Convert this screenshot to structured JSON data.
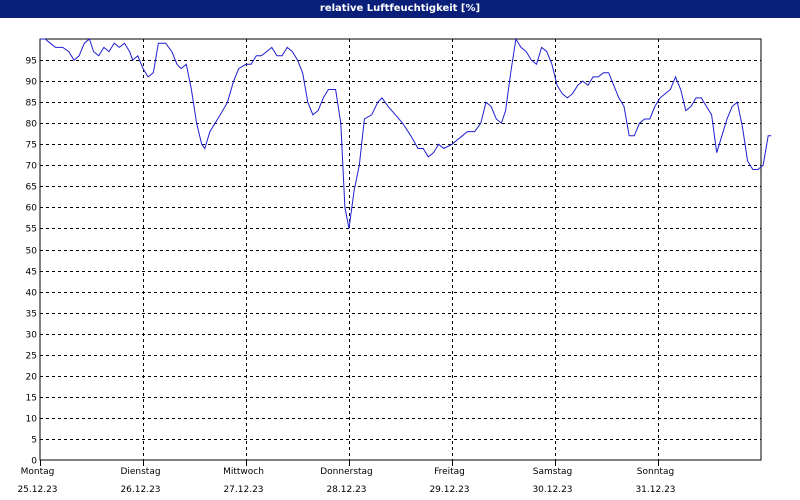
{
  "chart_data": {
    "type": "line",
    "title": "relative Luftfeuchtigkeit [%]",
    "xlabel": "",
    "ylabel": "",
    "ylim": [
      0,
      100
    ],
    "xlim": [
      0,
      7
    ],
    "grid": true,
    "colors": {
      "header_background": "#0a1f7a",
      "series_line": "#1f1fd0",
      "grid": "#000000"
    },
    "y_ticks": [
      0,
      5,
      10,
      15,
      20,
      25,
      30,
      35,
      40,
      45,
      50,
      55,
      60,
      65,
      70,
      75,
      80,
      85,
      90,
      95
    ],
    "x_ticks": [
      {
        "x": 0,
        "day": "Montag",
        "date": "25.12.23"
      },
      {
        "x": 1,
        "day": "Dienstag",
        "date": "26.12.23"
      },
      {
        "x": 2,
        "day": "Mittwoch",
        "date": "27.12.23"
      },
      {
        "x": 3,
        "day": "Donnerstag",
        "date": "28.12.23"
      },
      {
        "x": 4,
        "day": "Freitag",
        "date": "29.12.23"
      },
      {
        "x": 5,
        "day": "Samstag",
        "date": "30.12.23"
      },
      {
        "x": 6,
        "day": "Sonntag",
        "date": "31.12.23"
      }
    ],
    "series": [
      {
        "name": "",
        "points": [
          [
            0.0,
            100
          ],
          [
            0.05,
            100
          ],
          [
            0.1,
            99
          ],
          [
            0.15,
            98
          ],
          [
            0.22,
            98
          ],
          [
            0.28,
            97
          ],
          [
            0.33,
            95
          ],
          [
            0.38,
            96
          ],
          [
            0.43,
            99
          ],
          [
            0.48,
            100
          ],
          [
            0.52,
            97
          ],
          [
            0.57,
            96
          ],
          [
            0.62,
            98
          ],
          [
            0.67,
            97
          ],
          [
            0.72,
            99
          ],
          [
            0.77,
            98
          ],
          [
            0.82,
            99
          ],
          [
            0.87,
            97
          ],
          [
            0.9,
            95
          ],
          [
            0.95,
            96
          ],
          [
            1.0,
            93
          ],
          [
            1.05,
            91
          ],
          [
            1.1,
            92
          ],
          [
            1.15,
            99
          ],
          [
            1.22,
            99
          ],
          [
            1.28,
            97
          ],
          [
            1.33,
            94
          ],
          [
            1.37,
            93
          ],
          [
            1.42,
            94
          ],
          [
            1.47,
            88
          ],
          [
            1.52,
            80
          ],
          [
            1.57,
            75
          ],
          [
            1.6,
            74
          ],
          [
            1.65,
            78
          ],
          [
            1.7,
            80
          ],
          [
            1.75,
            82
          ],
          [
            1.82,
            85
          ],
          [
            1.88,
            90
          ],
          [
            1.93,
            93
          ],
          [
            2.0,
            94
          ],
          [
            2.05,
            94
          ],
          [
            2.1,
            96
          ],
          [
            2.15,
            96
          ],
          [
            2.2,
            97
          ],
          [
            2.25,
            98
          ],
          [
            2.3,
            96
          ],
          [
            2.35,
            96
          ],
          [
            2.4,
            98
          ],
          [
            2.45,
            97
          ],
          [
            2.5,
            95
          ],
          [
            2.55,
            92
          ],
          [
            2.6,
            85
          ],
          [
            2.65,
            82
          ],
          [
            2.7,
            83
          ],
          [
            2.75,
            86
          ],
          [
            2.8,
            88
          ],
          [
            2.87,
            88
          ],
          [
            2.92,
            80
          ],
          [
            2.96,
            60
          ],
          [
            3.0,
            55
          ],
          [
            3.05,
            64
          ],
          [
            3.1,
            70
          ],
          [
            3.15,
            81
          ],
          [
            3.22,
            82
          ],
          [
            3.28,
            85
          ],
          [
            3.32,
            86
          ],
          [
            3.38,
            84
          ],
          [
            3.45,
            82
          ],
          [
            3.52,
            80
          ],
          [
            3.6,
            77
          ],
          [
            3.67,
            74
          ],
          [
            3.72,
            74
          ],
          [
            3.77,
            72
          ],
          [
            3.82,
            73
          ],
          [
            3.87,
            75
          ],
          [
            3.92,
            74
          ],
          [
            4.0,
            75
          ],
          [
            4.05,
            76
          ],
          [
            4.1,
            77
          ],
          [
            4.15,
            78
          ],
          [
            4.22,
            78
          ],
          [
            4.28,
            80
          ],
          [
            4.33,
            85
          ],
          [
            4.38,
            84
          ],
          [
            4.43,
            81
          ],
          [
            4.48,
            80
          ],
          [
            4.52,
            83
          ],
          [
            4.57,
            92
          ],
          [
            4.62,
            100
          ],
          [
            4.67,
            98
          ],
          [
            4.72,
            97
          ],
          [
            4.77,
            95
          ],
          [
            4.82,
            94
          ],
          [
            4.87,
            98
          ],
          [
            4.92,
            97
          ],
          [
            4.97,
            94
          ],
          [
            5.02,
            89
          ],
          [
            5.07,
            87
          ],
          [
            5.12,
            86
          ],
          [
            5.17,
            87
          ],
          [
            5.22,
            89
          ],
          [
            5.27,
            90
          ],
          [
            5.32,
            89
          ],
          [
            5.37,
            91
          ],
          [
            5.42,
            91
          ],
          [
            5.47,
            92
          ],
          [
            5.52,
            92
          ],
          [
            5.57,
            89
          ],
          [
            5.62,
            86
          ],
          [
            5.67,
            84
          ],
          [
            5.72,
            77
          ],
          [
            5.77,
            77
          ],
          [
            5.82,
            80
          ],
          [
            5.87,
            81
          ],
          [
            5.92,
            81
          ],
          [
            5.97,
            84
          ],
          [
            6.02,
            86
          ],
          [
            6.07,
            87
          ],
          [
            6.12,
            88
          ],
          [
            6.17,
            91
          ],
          [
            6.22,
            88
          ],
          [
            6.27,
            83
          ],
          [
            6.32,
            84
          ],
          [
            6.37,
            86
          ],
          [
            6.42,
            86
          ],
          [
            6.47,
            84
          ],
          [
            6.52,
            82
          ],
          [
            6.57,
            73
          ],
          [
            6.62,
            77
          ],
          [
            6.67,
            81
          ],
          [
            6.72,
            84
          ],
          [
            6.77,
            85
          ],
          [
            6.82,
            79
          ],
          [
            6.87,
            71
          ],
          [
            6.92,
            69
          ],
          [
            6.97,
            69
          ],
          [
            7.02,
            70
          ],
          [
            7.07,
            77
          ],
          [
            7.1,
            77
          ]
        ]
      }
    ]
  }
}
